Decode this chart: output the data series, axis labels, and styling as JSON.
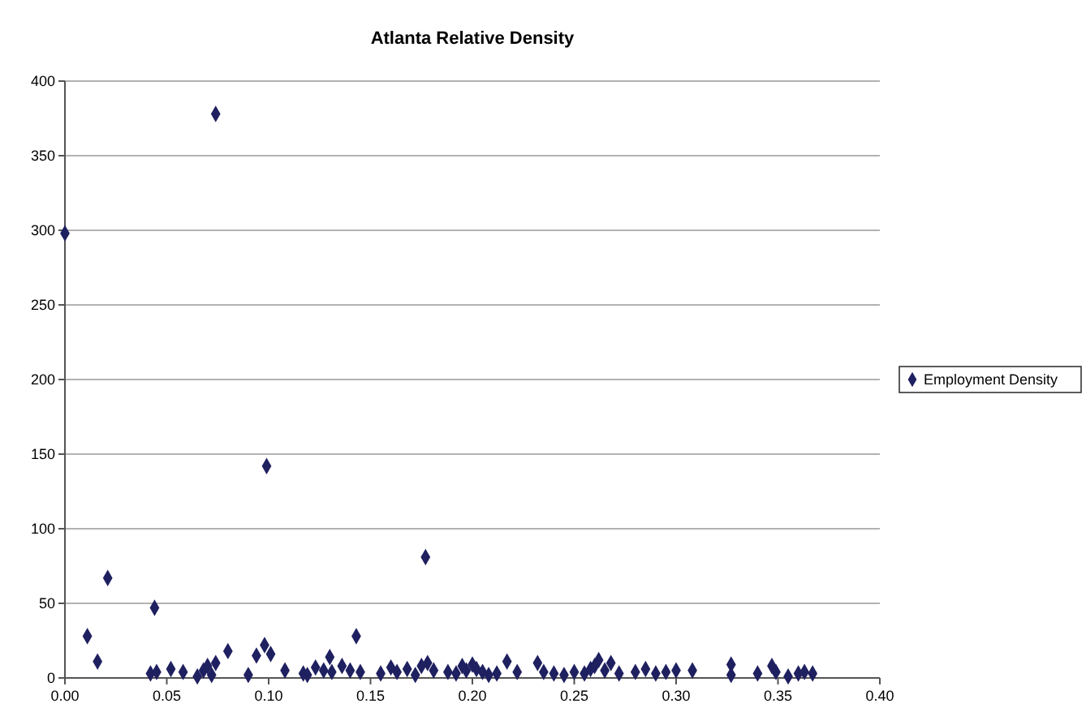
{
  "chart_data": {
    "type": "scatter",
    "title": "Atlanta Relative Density",
    "series": [
      {
        "name": "Employment Density",
        "color": "#1f2060",
        "marker": "diamond",
        "x": [
          0.0,
          0.074,
          0.099,
          0.177,
          0.021,
          0.044,
          0.011,
          0.016,
          0.143,
          0.08,
          0.098,
          0.094,
          0.101,
          0.13,
          0.042,
          0.045,
          0.052,
          0.058,
          0.065,
          0.068,
          0.07,
          0.072,
          0.074,
          0.09,
          0.108,
          0.117,
          0.119,
          0.123,
          0.127,
          0.131,
          0.136,
          0.14,
          0.145,
          0.155,
          0.16,
          0.163,
          0.168,
          0.172,
          0.175,
          0.178,
          0.181,
          0.188,
          0.192,
          0.195,
          0.197,
          0.2,
          0.202,
          0.205,
          0.208,
          0.212,
          0.217,
          0.222,
          0.232,
          0.235,
          0.24,
          0.245,
          0.25,
          0.255,
          0.258,
          0.26,
          0.262,
          0.265,
          0.268,
          0.272,
          0.28,
          0.285,
          0.29,
          0.295,
          0.3,
          0.308,
          0.327,
          0.327,
          0.34,
          0.347,
          0.349,
          0.355,
          0.36,
          0.363,
          0.367
        ],
        "values": [
          298,
          378,
          142,
          81,
          67,
          47,
          28,
          11,
          28,
          18,
          22,
          15,
          16,
          14,
          3,
          4,
          6,
          4,
          1,
          5,
          8,
          2,
          10,
          2,
          5,
          3,
          2,
          7,
          5,
          4,
          8,
          5,
          4,
          3,
          7,
          4,
          6,
          2,
          8,
          10,
          5,
          4,
          3,
          8,
          5,
          9,
          6,
          4,
          2,
          3,
          11,
          4,
          10,
          4,
          3,
          2,
          4,
          3,
          6,
          8,
          12,
          5,
          10,
          3,
          4,
          6,
          3,
          4,
          5,
          5,
          9,
          2,
          3,
          8,
          4,
          1,
          3,
          4,
          3
        ]
      }
    ],
    "xlim": [
      0,
      0.4
    ],
    "ylim": [
      0,
      400
    ],
    "xticks": [
      {
        "value": 0,
        "label": "0.00"
      },
      {
        "value": 0.05,
        "label": "0.05"
      },
      {
        "value": 0.1,
        "label": "0.10"
      },
      {
        "value": 0.15,
        "label": "0.15"
      },
      {
        "value": 0.2,
        "label": "0.20"
      },
      {
        "value": 0.25,
        "label": "0.25"
      },
      {
        "value": 0.3,
        "label": "0.30"
      },
      {
        "value": 0.35,
        "label": "0.35"
      },
      {
        "value": 0.4,
        "label": "0.40"
      }
    ],
    "yticks": [
      0,
      50,
      100,
      150,
      200,
      250,
      300,
      350,
      400
    ],
    "grid": "y",
    "legend": "right"
  }
}
